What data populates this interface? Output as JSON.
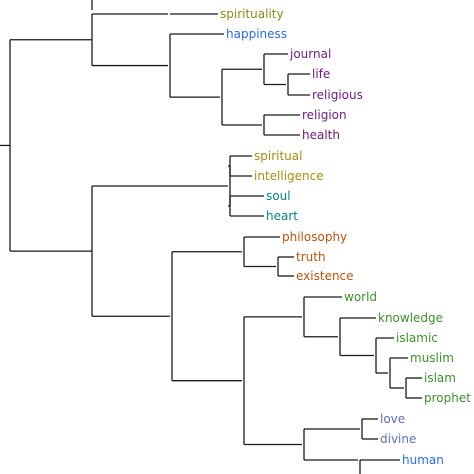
{
  "colors": {
    "line": "#1a1a1a",
    "olive": "#8a8a1e",
    "blue": "#2a6fd6",
    "purple": "#6a1d7a",
    "gold": "#a88a14",
    "teal": "#0b7f7f",
    "orange": "#b5540e",
    "green": "#3f8f2e",
    "slate": "#5f6fb0"
  },
  "leaves": [
    {
      "id": "spirituality",
      "label": "spirituality",
      "color": "olive"
    },
    {
      "id": "happiness",
      "label": "happiness",
      "color": "blue"
    },
    {
      "id": "journal",
      "label": "journal",
      "color": "purple"
    },
    {
      "id": "life",
      "label": "life",
      "color": "purple"
    },
    {
      "id": "religious",
      "label": "religious",
      "color": "purple"
    },
    {
      "id": "religion",
      "label": "religion",
      "color": "purple"
    },
    {
      "id": "health",
      "label": "health",
      "color": "purple"
    },
    {
      "id": "spiritual",
      "label": "spiritual",
      "color": "gold"
    },
    {
      "id": "intelligence",
      "label": "intelligence",
      "color": "gold"
    },
    {
      "id": "soul",
      "label": "soul",
      "color": "teal"
    },
    {
      "id": "heart",
      "label": "heart",
      "color": "teal"
    },
    {
      "id": "philosophy",
      "label": "philosophy",
      "color": "orange"
    },
    {
      "id": "truth",
      "label": "truth",
      "color": "orange"
    },
    {
      "id": "existence",
      "label": "existence",
      "color": "orange"
    },
    {
      "id": "world",
      "label": "world",
      "color": "green"
    },
    {
      "id": "knowledge",
      "label": "knowledge",
      "color": "green"
    },
    {
      "id": "islamic",
      "label": "islamic",
      "color": "green"
    },
    {
      "id": "muslim",
      "label": "muslim",
      "color": "green"
    },
    {
      "id": "islam",
      "label": "islam",
      "color": "green"
    },
    {
      "id": "prophet",
      "label": "prophet",
      "color": "green"
    },
    {
      "id": "love",
      "label": "love",
      "color": "slate"
    },
    {
      "id": "divine",
      "label": "divine",
      "color": "slate"
    },
    {
      "id": "human",
      "label": "human",
      "color": "blue"
    }
  ]
}
